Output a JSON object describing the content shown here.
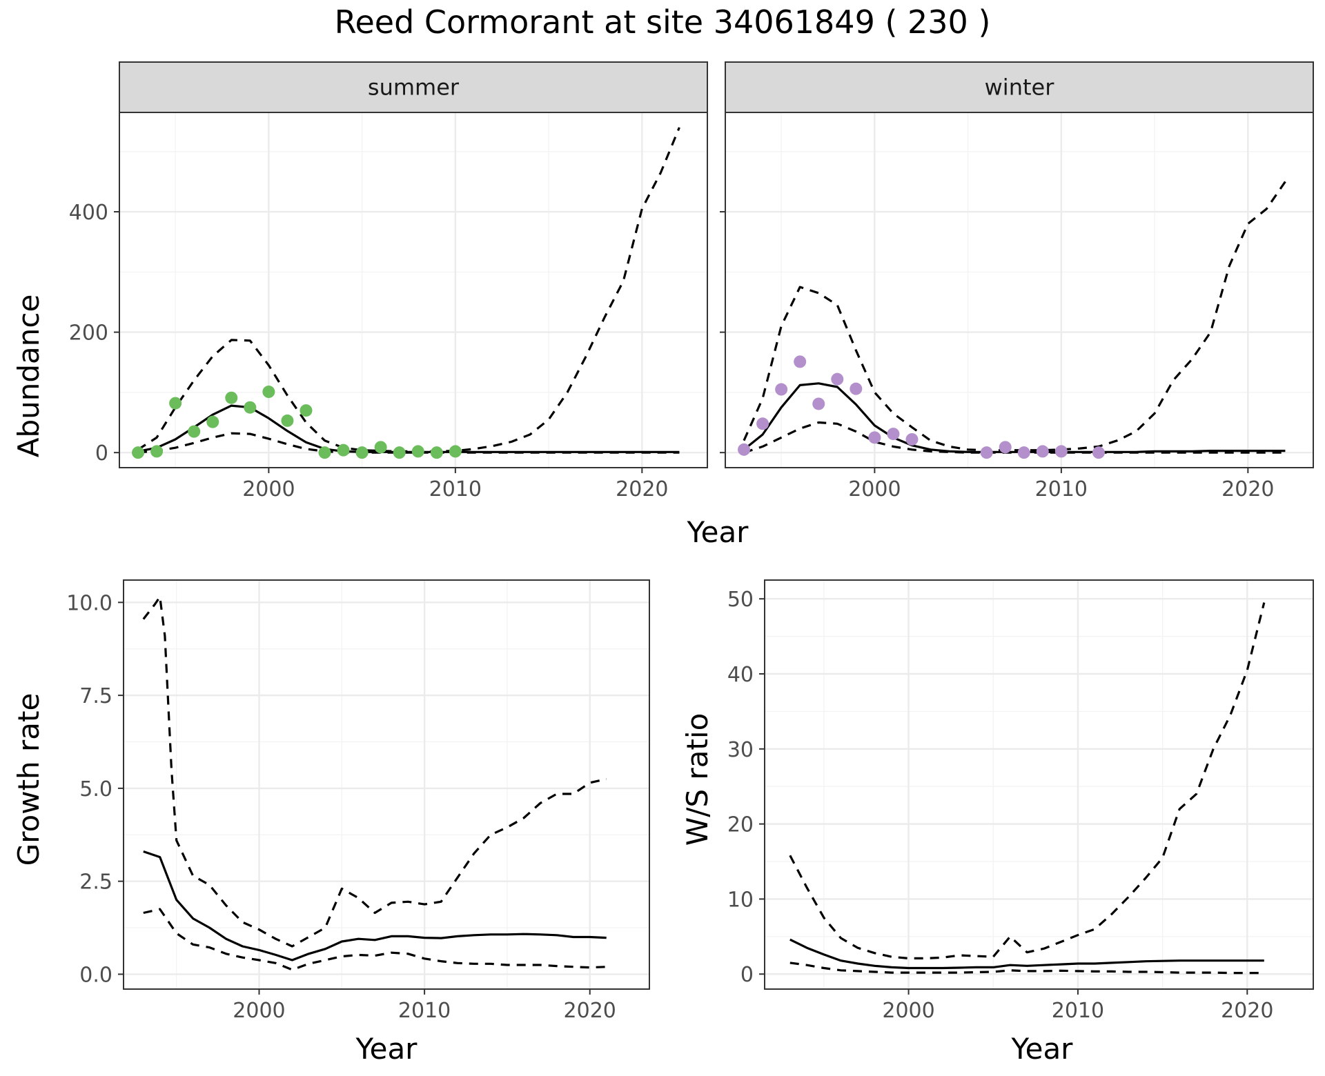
{
  "title": "Reed Cormorant at site 34061849 ( 230 )",
  "colors": {
    "summer_points": "#6ABD5A",
    "winter_points": "#B38FCB",
    "lines": "#000000"
  },
  "chart_data": [
    {
      "type": "line",
      "panel": "summer",
      "strip": "summer",
      "xlabel": "Year",
      "ylabel": "Abundance",
      "xlim": [
        1992,
        2023.5
      ],
      "ylim": [
        -25,
        565
      ],
      "xticks": [
        2000,
        2010,
        2020
      ],
      "yticks": [
        0,
        200,
        400
      ],
      "grid": true,
      "series": [
        {
          "role": "observed",
          "style": "points",
          "x": [
            1993,
            1994,
            1995,
            1996,
            1997,
            1998,
            1999,
            2000,
            2001,
            2002,
            2003,
            2004,
            2005,
            2006,
            2007,
            2008,
            2009,
            2010
          ],
          "y": [
            0,
            2,
            82,
            35,
            51,
            91,
            75,
            101,
            53,
            70,
            0,
            4,
            0,
            9,
            0,
            2,
            0,
            2
          ]
        },
        {
          "role": "fit",
          "style": "solid",
          "x": [
            1993,
            1994,
            1995,
            1996,
            1997,
            1998,
            1999,
            2000,
            2001,
            2002,
            2003,
            2004,
            2005,
            2006,
            2007,
            2008,
            2009,
            2010,
            2011,
            2012,
            2013,
            2014,
            2015,
            2016,
            2017,
            2018,
            2019,
            2020,
            2021,
            2022
          ],
          "y": [
            2,
            8,
            22,
            42,
            63,
            78,
            75,
            57,
            36,
            17,
            6,
            2,
            1,
            1,
            1,
            1,
            1,
            1,
            1,
            1,
            1,
            1,
            1,
            1,
            1,
            1,
            1,
            1,
            1,
            1
          ]
        },
        {
          "role": "upper",
          "style": "dashed",
          "x": [
            1993,
            1994,
            1995,
            1996,
            1997,
            1998,
            1999,
            2000,
            2001,
            2002,
            2003,
            2004,
            2005,
            2006,
            2007,
            2008,
            2009,
            2010,
            2011,
            2012,
            2013,
            2014,
            2015,
            2016,
            2017,
            2018,
            2019,
            2020,
            2021,
            2022
          ],
          "y": [
            5,
            25,
            75,
            120,
            160,
            187,
            186,
            145,
            95,
            50,
            20,
            8,
            4,
            3,
            2,
            2,
            2,
            3,
            6,
            11,
            18,
            30,
            55,
            100,
            160,
            225,
            285,
            405,
            465,
            540
          ]
        },
        {
          "role": "lower",
          "style": "dashed",
          "x": [
            1993,
            1994,
            1995,
            1996,
            1997,
            1998,
            1999,
            2000,
            2001,
            2002,
            2003,
            2004,
            2005,
            2006,
            2007,
            2008,
            2009,
            2010,
            2011,
            2012,
            2013,
            2014,
            2015,
            2016,
            2017,
            2018,
            2019,
            2020,
            2021,
            2022
          ],
          "y": [
            0,
            3,
            8,
            16,
            25,
            32,
            31,
            23,
            14,
            6,
            2,
            0,
            0,
            0,
            0,
            0,
            0,
            0,
            0,
            0,
            0,
            0,
            0,
            0,
            0,
            0,
            0,
            0,
            0,
            0
          ]
        }
      ]
    },
    {
      "type": "line",
      "panel": "winter",
      "strip": "winter",
      "xlabel": "Year",
      "ylabel": "",
      "xlim": [
        1992,
        2023.5
      ],
      "ylim": [
        -25,
        565
      ],
      "xticks": [
        2000,
        2010,
        2020
      ],
      "yticks": [
        0,
        200,
        400
      ],
      "grid": true,
      "series": [
        {
          "role": "observed",
          "style": "points",
          "x": [
            1993,
            1994,
            1995,
            1996,
            1997,
            1998,
            1999,
            2000,
            2001,
            2002,
            2006,
            2007,
            2008,
            2009,
            2010,
            2012
          ],
          "y": [
            5,
            48,
            105,
            151,
            81,
            122,
            106,
            25,
            31,
            22,
            0,
            9,
            0,
            2,
            2,
            0
          ]
        },
        {
          "role": "fit",
          "style": "solid",
          "x": [
            1993,
            1994,
            1995,
            1996,
            1997,
            1998,
            1999,
            2000,
            2001,
            2002,
            2003,
            2004,
            2005,
            2006,
            2007,
            2008,
            2009,
            2010,
            2011,
            2012,
            2013,
            2014,
            2015,
            2016,
            2017,
            2018,
            2019,
            2020,
            2021,
            2022
          ],
          "y": [
            5,
            30,
            75,
            112,
            115,
            109,
            80,
            45,
            25,
            12,
            5,
            2,
            1,
            1,
            1,
            1,
            1,
            1,
            1,
            1,
            1,
            1,
            2,
            2,
            2,
            3,
            3,
            3,
            3,
            3
          ]
        },
        {
          "role": "upper",
          "style": "dashed",
          "x": [
            1993,
            1994,
            1995,
            1996,
            1997,
            1998,
            1999,
            2000,
            2001,
            2002,
            2003,
            2004,
            2005,
            2006,
            2007,
            2008,
            2009,
            2010,
            2011,
            2012,
            2013,
            2014,
            2015,
            2016,
            2017,
            2018,
            2019,
            2020,
            2021,
            2022
          ],
          "y": [
            20,
            90,
            210,
            275,
            265,
            245,
            170,
            100,
            65,
            42,
            20,
            10,
            5,
            4,
            4,
            4,
            4,
            5,
            7,
            10,
            20,
            35,
            65,
            120,
            155,
            200,
            310,
            380,
            405,
            450
          ]
        },
        {
          "role": "lower",
          "style": "dashed",
          "x": [
            1993,
            1994,
            1995,
            1996,
            1997,
            1998,
            1999,
            2000,
            2001,
            2002,
            2003,
            2004,
            2005,
            2006,
            2007,
            2008,
            2009,
            2010,
            2011,
            2012,
            2013,
            2014,
            2015,
            2016,
            2017,
            2018,
            2019,
            2020,
            2021,
            2022
          ],
          "y": [
            0,
            10,
            25,
            40,
            50,
            48,
            35,
            18,
            10,
            5,
            2,
            1,
            0,
            0,
            0,
            0,
            0,
            0,
            0,
            0,
            0,
            0,
            0,
            0,
            0,
            0,
            0,
            0,
            0,
            0
          ]
        }
      ]
    },
    {
      "type": "line",
      "panel": "growth",
      "xlabel": "Year",
      "ylabel": "Growth rate",
      "xlim": [
        1991.8,
        2023.6
      ],
      "ylim": [
        -0.4,
        10.6
      ],
      "xticks": [
        2000,
        2010,
        2020
      ],
      "yticks": [
        0.0,
        2.5,
        5.0,
        7.5,
        10.0
      ],
      "ytick_labels": [
        "0.0",
        "2.5",
        "5.0",
        "7.5",
        "10.0"
      ],
      "grid": true,
      "series": [
        {
          "role": "fit",
          "style": "solid",
          "x": [
            1993,
            1994,
            1995,
            1996,
            1997,
            1998,
            1999,
            2000,
            2001,
            2002,
            2003,
            2004,
            2005,
            2006,
            2007,
            2008,
            2009,
            2010,
            2011,
            2012,
            2013,
            2014,
            2015,
            2016,
            2017,
            2018,
            2019,
            2020,
            2021
          ],
          "y": [
            3.3,
            3.15,
            2.0,
            1.5,
            1.25,
            0.95,
            0.75,
            0.65,
            0.52,
            0.38,
            0.55,
            0.68,
            0.88,
            0.95,
            0.92,
            1.02,
            1.02,
            0.98,
            0.97,
            1.02,
            1.05,
            1.07,
            1.07,
            1.08,
            1.07,
            1.05,
            1.0,
            1.0,
            0.98
          ]
        },
        {
          "role": "upper",
          "style": "dashed",
          "x": [
            1993,
            1993.7,
            1994,
            1994.3,
            1994.7,
            1995,
            1996,
            1997,
            1998,
            1999,
            2000,
            2001,
            2002,
            2003,
            2004,
            2005,
            2006,
            2007,
            2008,
            2009,
            2010,
            2011,
            2012,
            2013,
            2014,
            2015,
            2016,
            2017,
            2018,
            2019,
            2020,
            2021
          ],
          "y": [
            9.55,
            9.95,
            10.15,
            9.1,
            5.5,
            3.6,
            2.65,
            2.4,
            1.85,
            1.4,
            1.2,
            0.95,
            0.75,
            1.0,
            1.25,
            2.3,
            2.05,
            1.65,
            1.92,
            1.95,
            1.88,
            1.95,
            2.6,
            3.25,
            3.75,
            3.95,
            4.2,
            4.6,
            4.85,
            4.85,
            5.15,
            5.25
          ]
        },
        {
          "role": "lower",
          "style": "dashed",
          "x": [
            1993,
            1994,
            1995,
            1996,
            1997,
            1998,
            1999,
            2000,
            2001,
            2002,
            2003,
            2004,
            2005,
            2006,
            2007,
            2008,
            2009,
            2010,
            2011,
            2012,
            2013,
            2014,
            2015,
            2016,
            2017,
            2018,
            2019,
            2020,
            2021
          ],
          "y": [
            1.65,
            1.75,
            1.1,
            0.8,
            0.72,
            0.55,
            0.45,
            0.38,
            0.3,
            0.12,
            0.28,
            0.38,
            0.48,
            0.52,
            0.5,
            0.58,
            0.55,
            0.42,
            0.35,
            0.3,
            0.28,
            0.28,
            0.25,
            0.25,
            0.25,
            0.22,
            0.2,
            0.18,
            0.2
          ]
        }
      ]
    },
    {
      "type": "line",
      "panel": "ratio",
      "xlabel": "Year",
      "ylabel": "W/S ratio",
      "xlim": [
        1991.5,
        2023.9
      ],
      "ylim": [
        -2.0,
        52.5
      ],
      "xticks": [
        2000,
        2010,
        2020
      ],
      "yticks": [
        0,
        10,
        20,
        30,
        40,
        50
      ],
      "grid": true,
      "series": [
        {
          "role": "fit",
          "style": "solid",
          "x": [
            1993,
            1994,
            1995,
            1996,
            1997,
            1998,
            1999,
            2000,
            2001,
            2002,
            2003,
            2004,
            2005,
            2006,
            2007,
            2008,
            2009,
            2010,
            2011,
            2012,
            2013,
            2014,
            2015,
            2016,
            2017,
            2018,
            2019,
            2020,
            2021
          ],
          "y": [
            4.6,
            3.5,
            2.6,
            1.8,
            1.4,
            1.1,
            0.9,
            0.8,
            0.8,
            0.8,
            0.85,
            0.9,
            0.9,
            1.2,
            1.1,
            1.2,
            1.3,
            1.4,
            1.4,
            1.5,
            1.6,
            1.7,
            1.75,
            1.8,
            1.8,
            1.8,
            1.8,
            1.8,
            1.8
          ]
        },
        {
          "role": "upper",
          "style": "dashed",
          "x": [
            1993,
            1994,
            1995,
            1996,
            1997,
            1998,
            1999,
            2000,
            2001,
            2002,
            2003,
            2004,
            2005,
            2006,
            2007,
            2008,
            2009,
            2010,
            2011,
            2012,
            2013,
            2014,
            2015,
            2016,
            2017,
            2018,
            2019,
            2020,
            2021
          ],
          "y": [
            15.8,
            11.5,
            7.5,
            4.8,
            3.5,
            2.8,
            2.3,
            2.1,
            2.1,
            2.2,
            2.5,
            2.4,
            2.3,
            5.0,
            2.9,
            3.4,
            4.3,
            5.2,
            6.0,
            8.0,
            10.3,
            12.8,
            15.5,
            22.0,
            24.0,
            30.0,
            34.5,
            40.5,
            49.5
          ]
        },
        {
          "role": "lower",
          "style": "dashed",
          "x": [
            1993,
            1994,
            1995,
            1996,
            1997,
            1998,
            1999,
            2000,
            2001,
            2002,
            2003,
            2004,
            2005,
            2006,
            2007,
            2008,
            2009,
            2010,
            2011,
            2012,
            2013,
            2014,
            2015,
            2016,
            2017,
            2018,
            2019,
            2020,
            2021
          ],
          "y": [
            1.5,
            1.2,
            0.8,
            0.5,
            0.4,
            0.3,
            0.2,
            0.2,
            0.2,
            0.2,
            0.2,
            0.25,
            0.3,
            0.5,
            0.4,
            0.4,
            0.45,
            0.4,
            0.35,
            0.35,
            0.3,
            0.3,
            0.25,
            0.2,
            0.2,
            0.2,
            0.15,
            0.15,
            0.15
          ]
        }
      ]
    }
  ]
}
